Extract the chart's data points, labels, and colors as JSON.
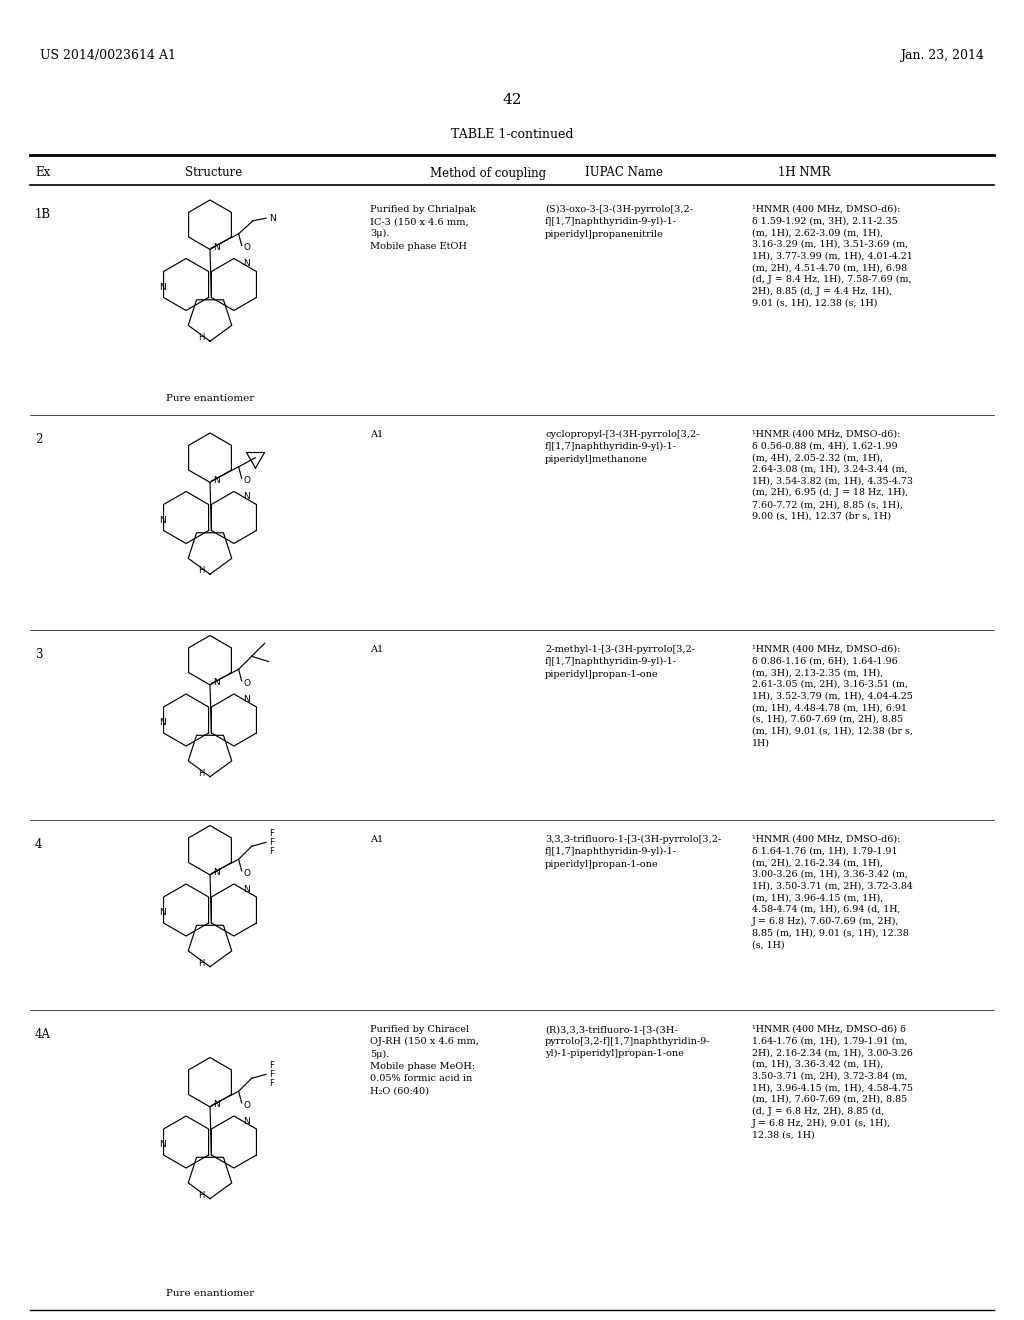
{
  "page_header_left": "US 2014/0023614 A1",
  "page_header_right": "Jan. 23, 2014",
  "page_number": "42",
  "table_title": "TABLE 1-continued",
  "col_headers": [
    "Ex",
    "Structure",
    "Method of coupling",
    "IUPAC Name",
    "1H NMR"
  ],
  "bg_color": "#ffffff",
  "text_color": "#000000",
  "rows": [
    {
      "ex": "1B",
      "structure_label": "Pure enantiomer",
      "method": "Purified by Chrialpak\nIC-3 (150 x 4.6 mm,\n3μ).\nMobile phase EtOH",
      "iupac": "(S)3-oxo-3-[3-(3H-pyrrolo[3,2-\nf][1,7]naphthyridin-9-yl)-1-\npiperidyl]propanenitrile",
      "nmr": "¹HNMR (400 MHz, DMSO-d6):\nδ 1.59-1.92 (m, 3H), 2.11-2.35\n(m, 1H), 2.62-3.09 (m, 1H),\n3.16-3.29 (m, 1H), 3.51-3.69 (m,\n1H), 3.77-3.99 (m, 1H), 4.01-4.21\n(m, 2H), 4.51-4.70 (m, 1H), 6.98\n(d, J = 8.4 Hz, 1H), 7.58-7.69 (m,\n2H), 8.85 (d, J = 4.4 Hz, 1H),\n9.01 (s, 1H), 12.38 (s, 1H)",
      "type": "1B"
    },
    {
      "ex": "2",
      "structure_label": "",
      "method": "A1",
      "iupac": "cyclopropyl-[3-(3H-pyrrolo[3,2-\nf][1,7]naphthyridin-9-yl)-1-\npiperidyl]methanone",
      "nmr": "¹HNMR (400 MHz, DMSO-d6):\nδ 0.56-0.88 (m, 4H), 1.62-1.99\n(m, 4H), 2.05-2.32 (m, 1H),\n2.64-3.08 (m, 1H), 3.24-3.44 (m,\n1H), 3.54-3.82 (m, 1H), 4.35-4.73\n(m, 2H), 6.95 (d, J = 18 Hz, 1H),\n7.60-7.72 (m, 2H), 8.85 (s, 1H),\n9.00 (s, 1H), 12.37 (br s, 1H)",
      "type": "2"
    },
    {
      "ex": "3",
      "structure_label": "",
      "method": "A1",
      "iupac": "2-methyl-1-[3-(3H-pyrrolo[3,2-\nf][1,7]naphthyridin-9-yl)-1-\npiperidyl]propan-1-one",
      "nmr": "¹HNMR (400 MHz, DMSO-d6):\nδ 0.86-1.16 (m, 6H), 1.64-1.96\n(m, 3H), 2.13-2.35 (m, 1H),\n2.61-3.05 (m, 2H), 3.16-3.51 (m,\n1H), 3.52-3.79 (m, 1H), 4.04-4.25\n(m, 1H), 4.48-4.78 (m, 1H), 6.91\n(s, 1H), 7.60-7.69 (m, 2H), 8.85\n(m, 1H), 9.01 (s, 1H), 12.38 (br s,\n1H)",
      "type": "3"
    },
    {
      "ex": "4",
      "structure_label": "",
      "method": "A1",
      "iupac": "3,3,3-trifluoro-1-[3-(3H-pyrrolo[3,2-\nf][1,7]naphthyridin-9-yl)-1-\npiperidyl]propan-1-one",
      "nmr": "¹HNMR (400 MHz, DMSO-d6):\nδ 1.64-1.76 (m, 1H), 1.79-1.91\n(m, 2H), 2.16-2.34 (m, 1H),\n3.00-3.26 (m, 1H), 3.36-3.42 (m,\n1H), 3.50-3.71 (m, 2H), 3.72-3.84\n(m, 1H), 3.96-4.15 (m, 1H),\n4.58-4.74 (m, 1H), 6.94 (d, 1H,\nJ = 6.8 Hz), 7.60-7.69 (m, 2H),\n8.85 (m, 1H), 9.01 (s, 1H), 12.38\n(s, 1H)",
      "type": "4"
    },
    {
      "ex": "4A",
      "structure_label": "Pure enantiomer",
      "method": "Purified by Chiracel\nOJ-RH (150 x 4.6 mm,\n5μ).\nMobile phase MeOH:\n0.05% formic acid in\nH₂O (60:40)",
      "iupac": "(R)3,3,3-trifluoro-1-[3-(3H-\npyrrolo[3,2-f][1,7]naphthyridin-9-\nyl)-1-piperidyl]propan-1-one",
      "nmr": "¹HNMR (400 MHz, DMSO-d6) δ\n1.64-1.76 (m, 1H), 1.79-1.91 (m,\n2H), 2.16-2.34 (m, 1H), 3.00-3.26\n(m, 1H), 3.36-3.42 (m, 1H),\n3.50-3.71 (m, 2H), 3.72-3.84 (m,\n1H), 3.96-4.15 (m, 1H), 4.58-4.75\n(m, 1H), 7.60-7.69 (m, 2H), 8.85\n(d, J = 6.8 Hz, 2H), 8.85 (d,\nJ = 6.8 Hz, 2H), 9.01 (s, 1H),\n12.38 (s, 1H)",
      "type": "4A"
    }
  ]
}
